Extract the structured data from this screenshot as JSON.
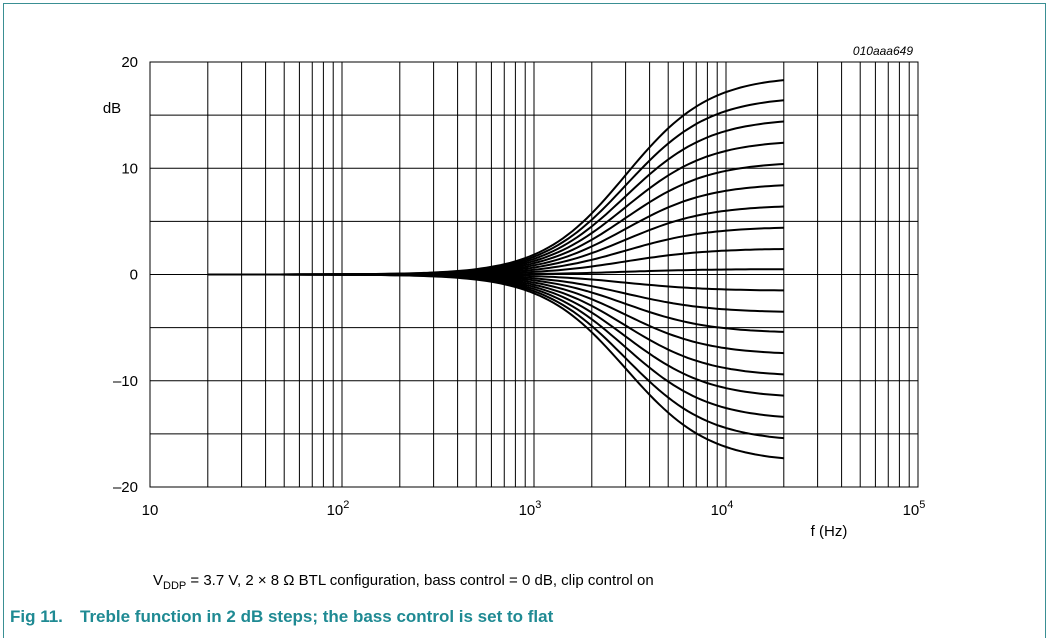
{
  "figure_id": "010aaa649",
  "condition": {
    "v_main": "V",
    "v_sub": "DDP",
    "text": " = 3.7 V, 2 × 8 Ω BTL configuration, bass control = 0 dB, clip control on"
  },
  "caption": {
    "number": "Fig 11.",
    "title": "Treble function in 2 dB steps; the bass control is set to flat"
  },
  "colors": {
    "caption": "#1f8a93",
    "frame": "#3a8f93",
    "curve": "#000000"
  },
  "chart_data": {
    "type": "line",
    "title": "",
    "xlabel": "f (Hz)",
    "ylabel": "dB",
    "xscale": "log",
    "xlim": [
      10,
      100000
    ],
    "ylim": [
      -20,
      20
    ],
    "grid": true,
    "x_ticks": [
      {
        "base": "10",
        "exp": ""
      },
      {
        "base": "10",
        "exp": "2"
      },
      {
        "base": "10",
        "exp": "3"
      },
      {
        "base": "10",
        "exp": "4"
      },
      {
        "base": "10",
        "exp": "5"
      }
    ],
    "y_ticks": [
      "20",
      "10",
      "0",
      "–10",
      "–20"
    ],
    "y_tick_values": [
      20,
      10,
      0,
      -10,
      -20
    ],
    "series_model": "shelving treble curves from 20 Hz to 20 kHz; each series is the gain at 20 kHz (dB)",
    "x_start": 20,
    "x_end": 20000,
    "series": [
      {
        "end_value": 18.3
      },
      {
        "end_value": 16.4
      },
      {
        "end_value": 14.4
      },
      {
        "end_value": 12.4
      },
      {
        "end_value": 10.4
      },
      {
        "end_value": 8.4
      },
      {
        "end_value": 6.4
      },
      {
        "end_value": 4.4
      },
      {
        "end_value": 2.4
      },
      {
        "end_value": 0.5
      },
      {
        "end_value": -1.5
      },
      {
        "end_value": -3.5
      },
      {
        "end_value": -5.4
      },
      {
        "end_value": -7.4
      },
      {
        "end_value": -9.4
      },
      {
        "end_value": -11.4
      },
      {
        "end_value": -13.4
      },
      {
        "end_value": -15.4
      },
      {
        "end_value": -17.3
      }
    ]
  }
}
